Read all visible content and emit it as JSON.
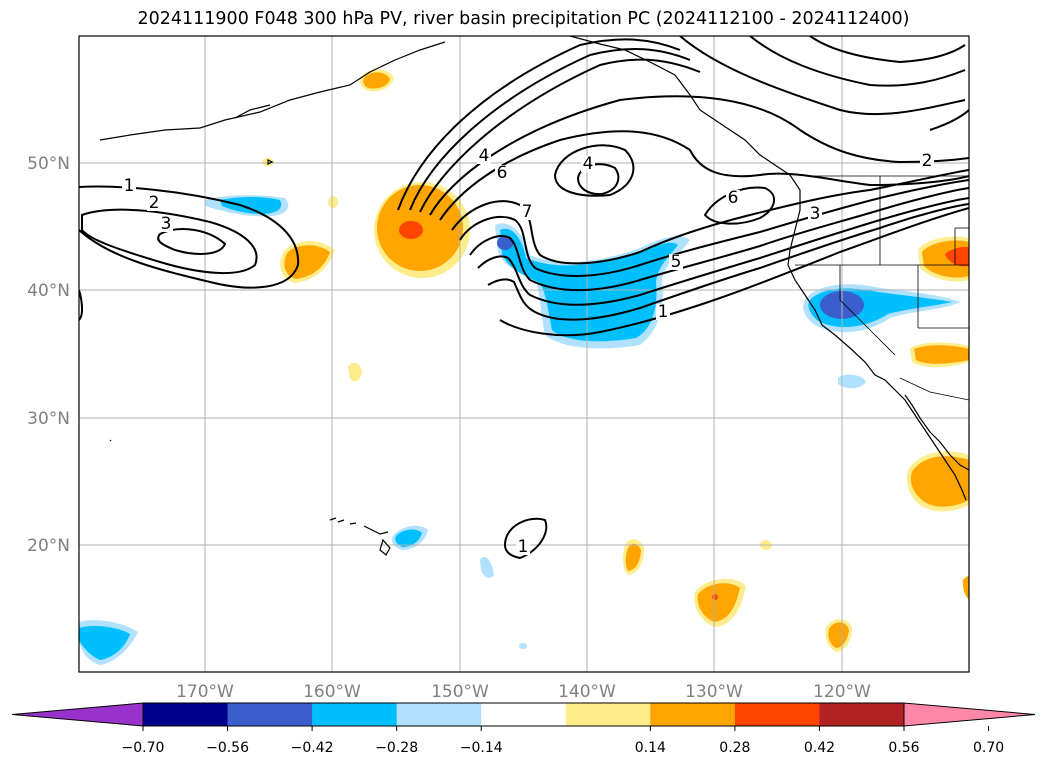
{
  "title": "2024111900 F048 300 hPa PV, river basin precipitation PC (2024112100 - 2024112400)",
  "map": {
    "lon_range": [
      -180,
      -110
    ],
    "lat_range": [
      10,
      60
    ],
    "lat_labels": [
      "50°N",
      "40°N",
      "30°N",
      "20°N"
    ],
    "lon_labels": [
      "170°W",
      "160°W",
      "150°W",
      "140°W",
      "130°W",
      "120°W"
    ],
    "gridlines": true,
    "contour_field": "300 hPa PV",
    "contour_labels": [
      "1",
      "2",
      "3",
      "4",
      "6",
      "7",
      "4",
      "6",
      "5",
      "1",
      "3",
      "2",
      "1"
    ],
    "fill_field": "river basin precipitation PC"
  },
  "colorbar": {
    "ticks": [
      "−0.70",
      "−0.56",
      "−0.42",
      "−0.28",
      "−0.14",
      "0.14",
      "0.28",
      "0.42",
      "0.56",
      "0.70"
    ],
    "colors": [
      "#9932cc",
      "#00008b",
      "#3a5fcd",
      "#00bfff",
      "#b0e2ff",
      "#ffffff",
      "#ffec8b",
      "#ffa500",
      "#ff4500",
      "#b22222",
      "#ff88aa"
    ],
    "extend": "both"
  }
}
